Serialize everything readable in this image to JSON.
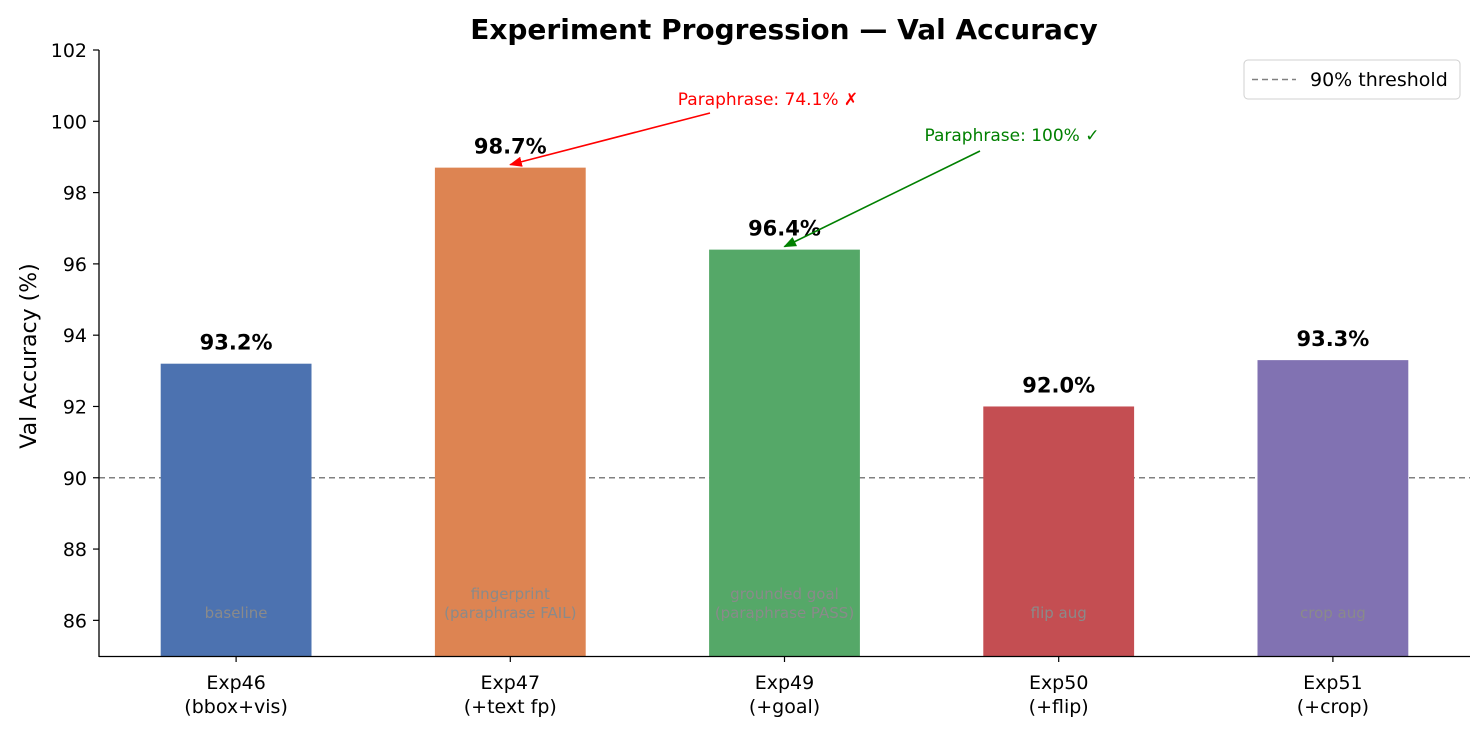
{
  "chart_data": {
    "type": "bar",
    "title": "Experiment Progression — Val Accuracy",
    "ylabel": "Val Accuracy (%)",
    "xlabel": "",
    "ylim": [
      85,
      102
    ],
    "yticks": [
      86,
      88,
      90,
      92,
      94,
      96,
      98,
      100,
      102
    ],
    "categories": [
      [
        "Exp46",
        "(bbox+vis)"
      ],
      [
        "Exp47",
        "(+text fp)"
      ],
      [
        "Exp49",
        "(+goal)"
      ],
      [
        "Exp50",
        "(+flip)"
      ],
      [
        "Exp51",
        "(+crop)"
      ]
    ],
    "values": [
      93.2,
      98.7,
      96.4,
      92.0,
      93.3
    ],
    "value_labels": [
      "93.2%",
      "98.7%",
      "96.4%",
      "92.0%",
      "93.3%"
    ],
    "bar_colors": [
      "#4c72b0",
      "#dd8452",
      "#55a868",
      "#c44e52",
      "#8172b2"
    ],
    "inner_labels": [
      [
        "baseline"
      ],
      [
        "fingerprint",
        "(paraphrase FAIL)"
      ],
      [
        "grounded goal",
        "(paraphrase PASS)"
      ],
      [
        "flip aug"
      ],
      [
        "crop aug"
      ]
    ],
    "threshold": {
      "value": 90,
      "label": "90% threshold",
      "color": "#808080"
    },
    "legend": {
      "position": "top-right"
    },
    "grid": false,
    "annotations": [
      {
        "text": "Paraphrase: 74.1% ✗",
        "color": "#ff0000",
        "target_index": 1
      },
      {
        "text": "Paraphrase: 100% ✓",
        "color": "#008000",
        "target_index": 2
      }
    ]
  }
}
